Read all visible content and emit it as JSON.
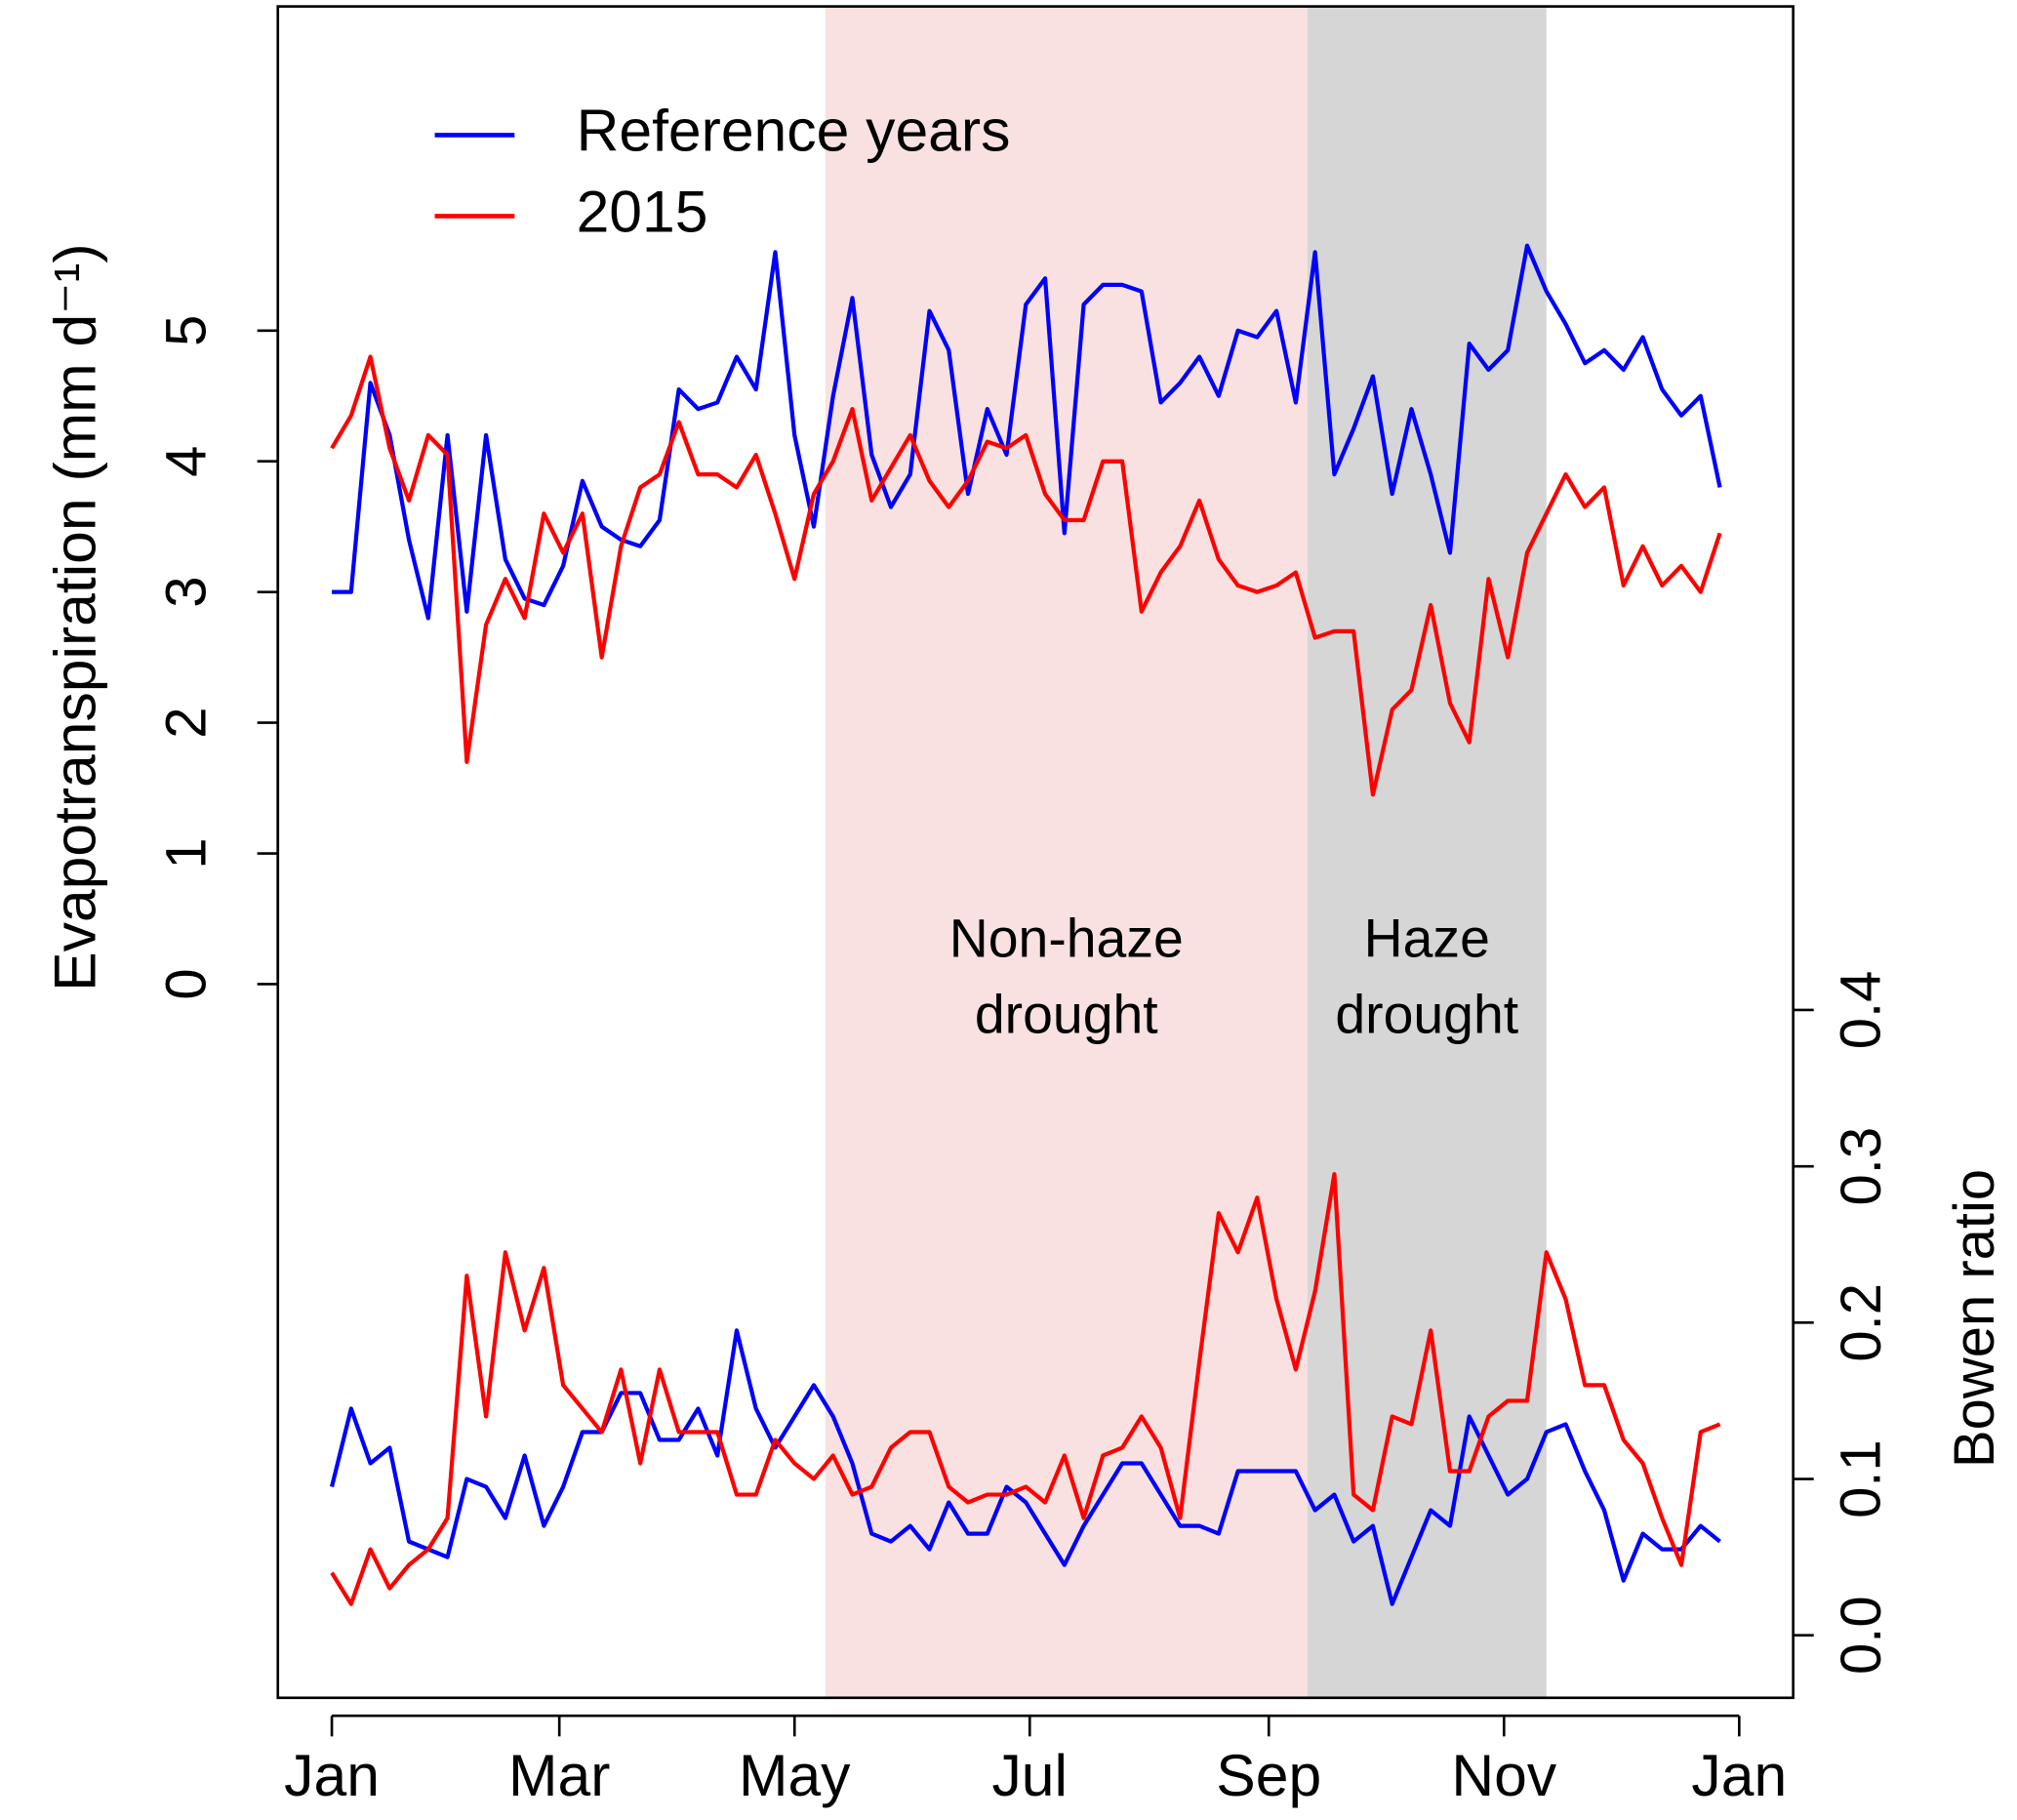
{
  "chart_data": {
    "type": "line",
    "y_label": "Evapotranspiration (mm d⁻¹)",
    "y2_label": "Bowen ratio",
    "x": [
      0,
      5,
      10,
      15,
      20,
      25,
      30,
      35,
      40,
      45,
      50,
      55,
      60,
      65,
      70,
      75,
      80,
      85,
      90,
      95,
      100,
      105,
      110,
      115,
      120,
      125,
      130,
      135,
      140,
      145,
      150,
      155,
      160,
      165,
      170,
      175,
      180,
      185,
      190,
      195,
      200,
      205,
      210,
      215,
      220,
      225,
      230,
      235,
      240,
      245,
      250,
      255,
      260,
      265,
      270,
      275,
      280,
      285,
      290,
      295,
      300,
      305,
      310,
      315,
      320,
      325,
      330,
      335,
      340,
      345,
      350,
      355,
      360
    ],
    "xlim": [
      -14,
      379
    ],
    "xticks": [
      {
        "value": 0,
        "label": "Jan"
      },
      {
        "value": 59,
        "label": "Mar"
      },
      {
        "value": 120,
        "label": "May"
      },
      {
        "value": 181,
        "label": "Jul"
      },
      {
        "value": 243,
        "label": "Sep"
      },
      {
        "value": 304,
        "label": "Nov"
      },
      {
        "value": 365,
        "label": "Jan"
      }
    ],
    "ylim": [
      -5.46,
      7.48
    ],
    "yticks": [
      0,
      1,
      2,
      3,
      4,
      5
    ],
    "y2lim": [
      -0.04,
      1.042
    ],
    "y2ticks": [
      {
        "value": 0,
        "label": "0.0"
      },
      0.1,
      0.2,
      0.3,
      0.4
    ],
    "regions": [
      {
        "start": 128,
        "end": 253,
        "color": "#f9e1e1",
        "label_lines": [
          "Non-haze",
          "drought"
        ]
      },
      {
        "start": 253,
        "end": 315,
        "color": "#d6d6d6",
        "label_lines": [
          "Haze",
          "drought"
        ]
      }
    ],
    "legend": "top-left",
    "series": [
      {
        "name": "Reference years",
        "color": "#0000ff",
        "axis": "y",
        "values": [
          3.0,
          3.0,
          4.6,
          4.2,
          3.4,
          2.8,
          4.2,
          2.85,
          4.2,
          3.25,
          2.95,
          2.9,
          3.2,
          3.85,
          3.5,
          3.4,
          3.35,
          3.55,
          4.55,
          4.4,
          4.45,
          4.8,
          4.55,
          5.6,
          4.2,
          3.5,
          4.5,
          5.25,
          4.05,
          3.65,
          3.9,
          5.15,
          4.85,
          3.75,
          4.4,
          4.05,
          5.2,
          5.4,
          3.45,
          5.2,
          5.35,
          5.35,
          5.3,
          4.45,
          4.6,
          4.8,
          4.5,
          5.0,
          4.95,
          5.15,
          4.45,
          5.6,
          3.9,
          4.25,
          4.65,
          3.75,
          4.4,
          3.9,
          3.3,
          4.9,
          4.7,
          4.85,
          5.65,
          5.3,
          5.05,
          4.75,
          4.85,
          4.7,
          4.95,
          4.55,
          4.35,
          4.5,
          3.8
        ]
      },
      {
        "name": "2015",
        "color": "#ff0000",
        "axis": "y",
        "values": [
          4.1,
          4.35,
          4.8,
          4.1,
          3.7,
          4.2,
          4.05,
          1.7,
          2.75,
          3.1,
          2.8,
          3.6,
          3.3,
          3.6,
          2.5,
          3.35,
          3.8,
          3.9,
          4.3,
          3.9,
          3.9,
          3.8,
          4.05,
          3.6,
          3.1,
          3.75,
          4.0,
          4.4,
          3.7,
          3.95,
          4.2,
          3.85,
          3.65,
          3.85,
          4.15,
          4.1,
          4.2,
          3.75,
          3.55,
          3.55,
          4.0,
          4.0,
          2.85,
          3.15,
          3.35,
          3.7,
          3.25,
          3.05,
          3.0,
          3.05,
          3.15,
          2.65,
          2.7,
          2.7,
          1.45,
          2.1,
          2.25,
          2.9,
          2.15,
          1.85,
          3.1,
          2.5,
          3.3,
          3.6,
          3.9,
          3.65,
          3.8,
          3.05,
          3.35,
          3.05,
          3.2,
          3.0,
          3.45
        ]
      },
      {
        "color": "#0000ff",
        "axis": "y2",
        "values": [
          0.095,
          0.145,
          0.11,
          0.12,
          0.06,
          0.055,
          0.05,
          0.1,
          0.095,
          0.075,
          0.115,
          0.07,
          0.095,
          0.13,
          0.13,
          0.155,
          0.155,
          0.125,
          0.125,
          0.145,
          0.115,
          0.195,
          0.145,
          0.12,
          0.14,
          0.16,
          0.14,
          0.11,
          0.065,
          0.06,
          0.07,
          0.055,
          0.085,
          0.065,
          0.065,
          0.095,
          0.085,
          0.065,
          0.045,
          0.07,
          0.09,
          0.11,
          0.11,
          0.09,
          0.07,
          0.07,
          0.065,
          0.105,
          0.105,
          0.105,
          0.105,
          0.08,
          0.09,
          0.06,
          0.07,
          0.02,
          0.05,
          0.08,
          0.07,
          0.14,
          0.115,
          0.09,
          0.1,
          0.13,
          0.135,
          0.105,
          0.08,
          0.035,
          0.065,
          0.055,
          0.055,
          0.07,
          0.06
        ]
      },
      {
        "color": "#ff0000",
        "axis": "y2",
        "values": [
          0.04,
          0.02,
          0.055,
          0.03,
          0.045,
          0.055,
          0.075,
          0.23,
          0.14,
          0.245,
          0.195,
          0.235,
          0.16,
          0.145,
          0.13,
          0.17,
          0.11,
          0.17,
          0.13,
          0.13,
          0.13,
          0.09,
          0.09,
          0.125,
          0.11,
          0.1,
          0.115,
          0.09,
          0.095,
          0.12,
          0.13,
          0.13,
          0.095,
          0.085,
          0.09,
          0.09,
          0.095,
          0.085,
          0.115,
          0.075,
          0.115,
          0.12,
          0.14,
          0.12,
          0.075,
          0.175,
          0.27,
          0.245,
          0.28,
          0.215,
          0.17,
          0.22,
          0.295,
          0.09,
          0.08,
          0.14,
          0.135,
          0.195,
          0.105,
          0.105,
          0.14,
          0.15,
          0.15,
          0.245,
          0.215,
          0.16,
          0.16,
          0.125,
          0.11,
          0.075,
          0.045,
          0.13,
          0.135
        ]
      }
    ]
  }
}
